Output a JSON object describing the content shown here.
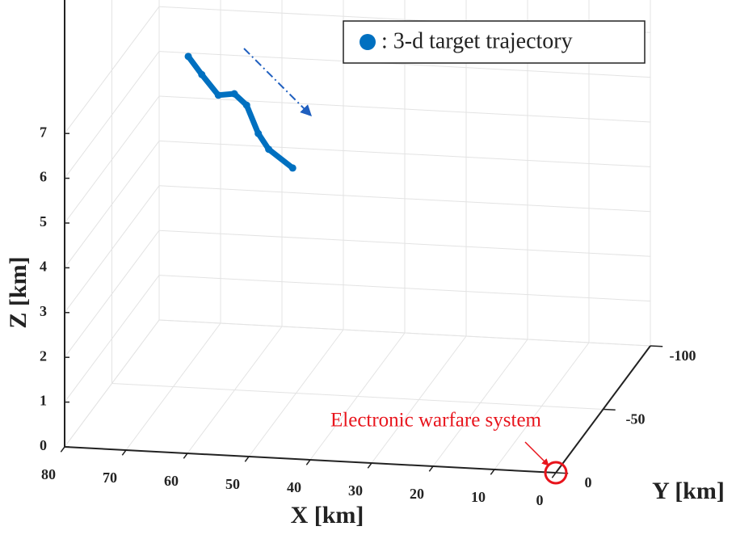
{
  "chart_data": {
    "type": "line3d",
    "series": [
      {
        "name": ": 3-d target trajectory",
        "color": "#0070c0",
        "x": [
          69.1,
          66.9,
          64.2,
          61.6,
          59.6,
          57.7,
          56.0,
          52.1
        ],
        "y": [
          -60,
          -60,
          -60,
          -60,
          -60,
          -60,
          -60,
          -60
        ],
        "z": [
          7.1,
          6.71,
          6.27,
          6.32,
          6.08,
          5.46,
          5.12,
          4.73
        ]
      }
    ],
    "xlabel": "X [km]",
    "ylabel": "Y [km]",
    "zlabel": "Z [km]",
    "xlim": [
      0,
      80
    ],
    "ylim": [
      -100,
      0
    ],
    "zlim": [
      0,
      10
    ],
    "xticks": [
      0,
      10,
      20,
      30,
      40,
      50,
      60,
      70,
      80
    ],
    "yticks": [
      -100,
      -50,
      0
    ],
    "zticks": [
      0,
      1,
      2,
      3,
      4,
      5,
      6,
      7
    ],
    "grid": true,
    "annotation": {
      "text": "Electronic warfare system",
      "color": "#e8141c",
      "x": 0,
      "y": 0,
      "z": 0
    }
  }
}
